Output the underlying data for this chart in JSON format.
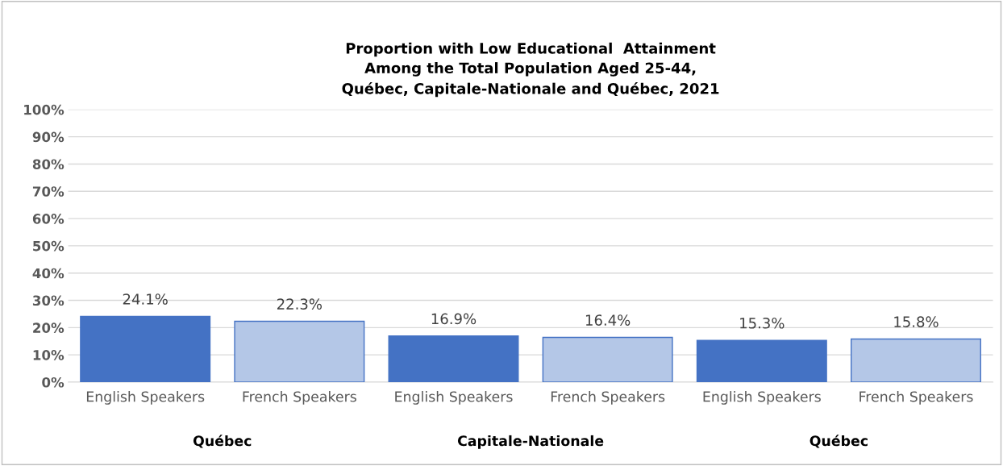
{
  "chart_data": {
    "type": "bar",
    "title": "Proportion with Low Educational  Attainment\nAmong the Total Population Aged 25-44,\nQuébec, Capitale-Nationale and Québec, 2021",
    "categories": [
      "English Speakers",
      "French Speakers",
      "English Speakers",
      "French Speakers",
      "English Speakers",
      "French Speakers"
    ],
    "values": [
      24.1,
      22.3,
      16.9,
      16.4,
      15.3,
      15.8
    ],
    "colors": [
      "#4472c4",
      "#b4c7e7",
      "#4472c4",
      "#b4c7e7",
      "#4472c4",
      "#b4c7e7"
    ],
    "value_labels": [
      "24.1%",
      "22.3%",
      "16.9%",
      "16.4%",
      "15.3%",
      "15.8%"
    ],
    "annotations": [
      "Québec",
      "Capitale-Nationale",
      "Québec"
    ],
    "ylim": [
      0,
      100
    ],
    "yticks": [
      {
        "value": 0,
        "label": "0%"
      },
      {
        "value": 10,
        "label": "10%"
      },
      {
        "value": 20,
        "label": "20%"
      },
      {
        "value": 30,
        "label": "30%"
      },
      {
        "value": 40,
        "label": "40%"
      },
      {
        "value": 50,
        "label": "50%"
      },
      {
        "value": 60,
        "label": "60%"
      },
      {
        "value": 70,
        "label": "70%"
      },
      {
        "value": 80,
        "label": "80%"
      },
      {
        "value": 90,
        "label": "90%"
      },
      {
        "value": 100,
        "label": "100%"
      }
    ],
    "grid": "y",
    "legend": false
  }
}
